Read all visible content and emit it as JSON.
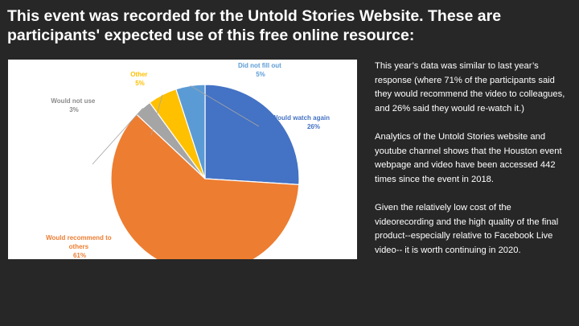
{
  "slide": {
    "title_line1": "This event was recorded for the Untold Stories Website. These are",
    "title_line2": "participants' expected use of this free online resource:"
  },
  "chart_data": {
    "type": "pie",
    "slices": [
      {
        "label": "Would watch again",
        "percent_label": "26%",
        "value": 26,
        "color": "#4472C4"
      },
      {
        "label": "Would recommend to others",
        "percent_label": "61%",
        "value": 61,
        "color": "#ED7D31"
      },
      {
        "label": "Would not use",
        "percent_label": "3%",
        "value": 3,
        "color": "#A5A5A5"
      },
      {
        "label": "Other",
        "percent_label": "5%",
        "value": 5,
        "color": "#FFC000"
      },
      {
        "label": "Did not fill out",
        "percent_label": "5%",
        "value": 5,
        "color": "#5B9BD5"
      }
    ]
  },
  "notes": {
    "p1": "This year’s data was similar to last year’s response (where 71% of the participants said they would recommend the video to colleagues, and 26% said they would re-watch it.)",
    "p2": "Analytics of the Untold Stories website  and youtube channel shows that the Houston event webpage and video have been accessed 442 times since the event in 2018.",
    "p3": "Given the relatively low cost of the videorecording and the high quality of the final product--especially relative to Facebook Live video-- it is worth continuing in 2020."
  }
}
